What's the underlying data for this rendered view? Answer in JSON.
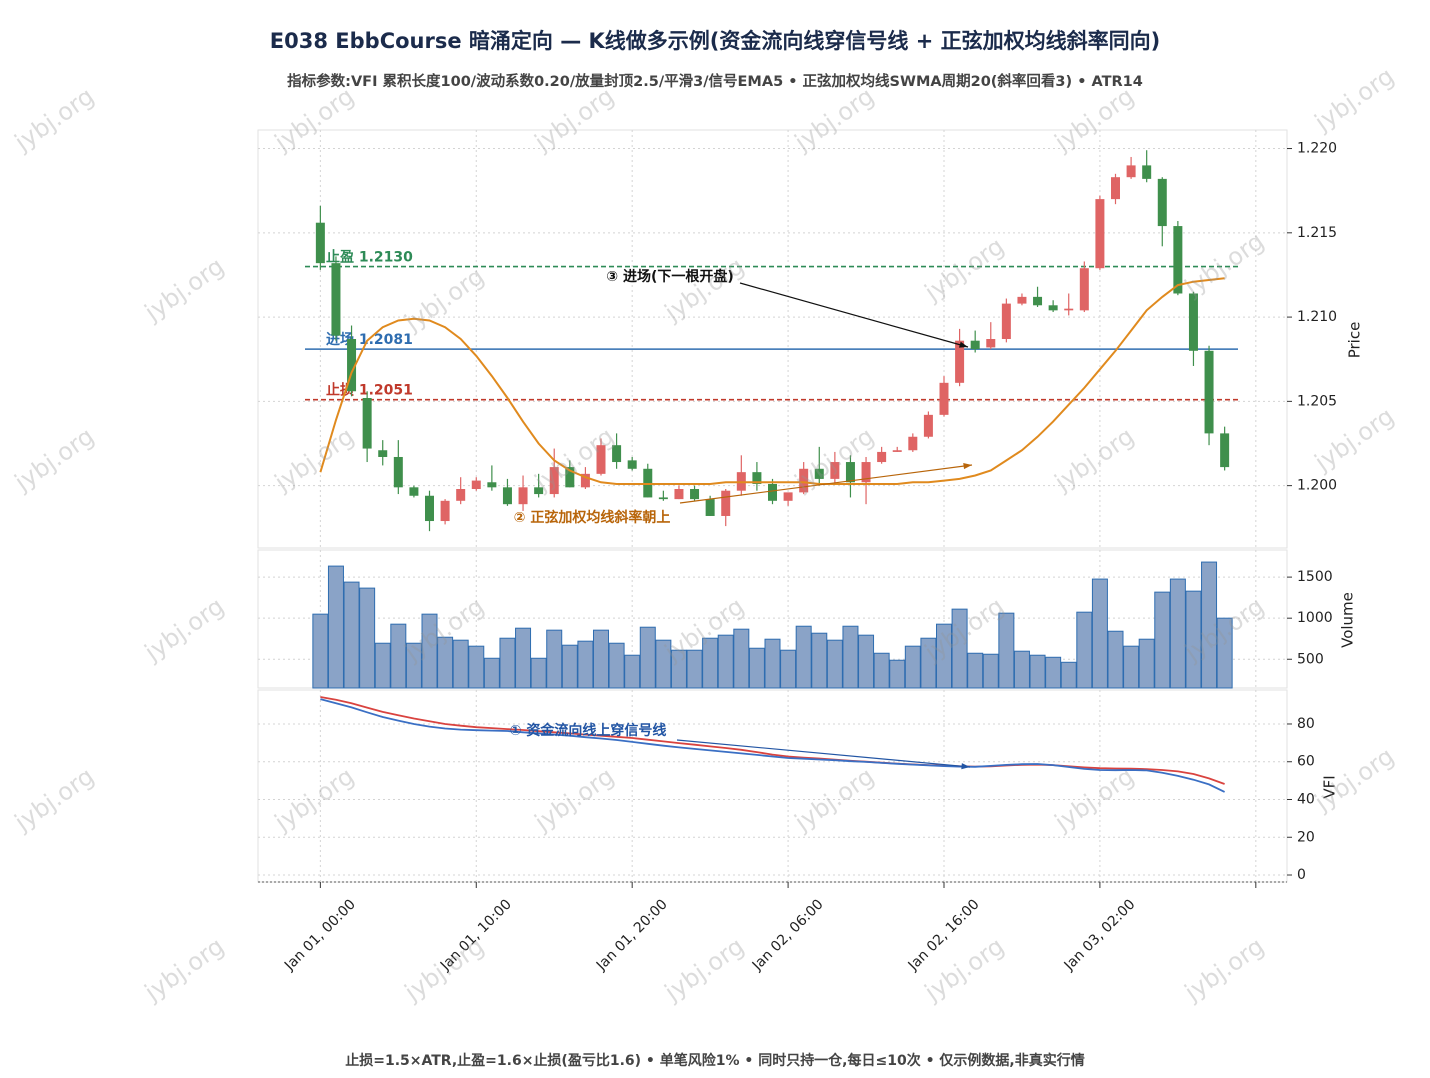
{
  "title": "E038 EbbCourse 暗涌定向 — K线做多示例(资金流向线穿信号线 + 正弦加权均线斜率同向)",
  "subtitle": "指标参数:VFI 累积长度100/波动系数0.20/放量封顶2.5/平滑3/信号EMA5 • 正弦加权均线SWMA周期20(斜率回看3) • ATR14",
  "footer": "止损=1.5×ATR,止盈=1.6×止损(盈亏比1.6) • 单笔风险1% • 同时只持一仓,每日≤10次 • 仅示例数据,非真实行情",
  "watermark": "jybj.org",
  "chart_data": [
    {
      "type": "candlestick",
      "ylabel": "Price",
      "x": [
        0,
        1,
        2,
        3,
        4,
        5,
        6,
        7,
        8,
        9,
        10,
        11,
        12,
        13,
        14,
        15,
        16,
        17,
        18,
        19,
        20,
        21,
        22,
        23,
        24,
        25,
        26,
        27,
        28,
        29,
        30,
        31,
        32,
        33,
        34,
        35,
        36,
        37,
        38,
        39,
        40,
        41,
        42,
        43,
        44,
        45,
        46,
        47,
        48,
        49,
        50,
        51,
        52,
        53,
        54,
        55,
        56,
        57,
        58
      ],
      "open": [
        1.2156,
        1.2132,
        1.2087,
        1.2052,
        1.2021,
        1.2017,
        1.1999,
        1.1994,
        1.1979,
        1.1991,
        1.1998,
        1.2002,
        1.1999,
        1.1989,
        1.1999,
        1.1995,
        1.2011,
        1.1999,
        1.2007,
        1.2024,
        1.2015,
        1.201,
        1.1993,
        1.1992,
        1.1998,
        1.1992,
        1.1982,
        1.1997,
        1.2008,
        1.2001,
        1.1991,
        1.1996,
        1.201,
        1.2004,
        1.2014,
        1.2002,
        1.2014,
        1.202,
        1.2021,
        1.2029,
        1.2042,
        1.2061,
        1.2086,
        1.2082,
        1.2087,
        1.2108,
        1.2112,
        1.2107,
        1.2104,
        1.2104,
        1.2129,
        1.217,
        1.2183,
        1.219,
        1.2182,
        1.2154,
        1.2114,
        1.208,
        1.2031
      ],
      "high": [
        1.2166,
        1.2136,
        1.2095,
        1.2056,
        1.2027,
        1.2027,
        1.2,
        1.1997,
        1.1992,
        1.2005,
        1.2005,
        1.2012,
        1.2004,
        1.2006,
        1.2007,
        1.2022,
        1.2015,
        1.2011,
        1.2028,
        1.2031,
        1.2017,
        1.2013,
        1.1997,
        1.2,
        1.2,
        1.1994,
        1.1998,
        1.2018,
        1.2014,
        1.2004,
        1.1995,
        1.2014,
        1.2023,
        1.202,
        1.2018,
        1.2017,
        1.2023,
        1.2023,
        1.2031,
        1.2044,
        1.2065,
        1.2093,
        1.2092,
        1.2097,
        1.2111,
        1.2114,
        1.2118,
        1.211,
        1.2114,
        1.2133,
        1.2172,
        1.2185,
        1.2195,
        1.2199,
        1.2183,
        1.2157,
        1.2115,
        1.2083,
        1.2035
      ],
      "low": [
        1.2128,
        1.2086,
        1.2053,
        1.2014,
        1.2012,
        1.1995,
        1.1993,
        1.1973,
        1.1977,
        1.1989,
        1.1997,
        1.1997,
        1.1988,
        1.1985,
        1.1993,
        1.1993,
        1.1999,
        1.1998,
        1.2006,
        1.201,
        1.2009,
        1.1993,
        1.1991,
        1.1992,
        1.1991,
        1.1982,
        1.1976,
        1.1994,
        1.1997,
        1.1989,
        1.1988,
        1.1995,
        1.2,
        1.2001,
        1.1993,
        1.1989,
        1.2013,
        1.202,
        1.202,
        1.2028,
        1.2041,
        1.2059,
        1.2079,
        1.2081,
        1.2085,
        1.2107,
        1.2106,
        1.2103,
        1.2101,
        1.2103,
        1.2128,
        1.2167,
        1.2182,
        1.218,
        1.2142,
        1.2113,
        1.2071,
        1.2024,
        1.2009
      ],
      "close": [
        1.2132,
        1.2089,
        1.2056,
        1.2022,
        1.2017,
        1.1999,
        1.1994,
        1.1979,
        1.1991,
        1.1998,
        1.2003,
        1.1999,
        1.1989,
        1.1999,
        1.1995,
        1.2011,
        1.1999,
        1.2007,
        1.2024,
        1.2014,
        1.201,
        1.1993,
        1.1992,
        1.1998,
        1.1992,
        1.1982,
        1.1997,
        1.2008,
        1.2001,
        1.1991,
        1.1996,
        1.201,
        1.2004,
        1.2014,
        1.2002,
        1.2014,
        1.202,
        1.2021,
        1.2029,
        1.2042,
        1.2061,
        1.2086,
        1.2081,
        1.2087,
        1.2108,
        1.2112,
        1.2107,
        1.2104,
        1.2105,
        1.2129,
        1.217,
        1.2183,
        1.219,
        1.2182,
        1.2154,
        1.2114,
        1.208,
        1.2031,
        1.2011
      ],
      "up_color": "#df6464",
      "down_color": "#3f8f4c",
      "overlay": {
        "color": "#e08a1e",
        "values": [
          1.2008,
          1.2039,
          1.2067,
          1.2086,
          1.2094,
          1.2098,
          1.2099,
          1.2098,
          1.2094,
          1.2087,
          1.2077,
          1.2065,
          1.2052,
          1.2038,
          1.2025,
          1.2015,
          1.2009,
          1.2005,
          1.2002,
          1.2001,
          1.2001,
          1.2001,
          1.2001,
          1.2001,
          1.2001,
          1.2001,
          1.2002,
          1.2002,
          1.2002,
          1.2002,
          1.2002,
          1.2002,
          1.2001,
          1.2001,
          1.2001,
          1.2001,
          1.2001,
          1.2001,
          1.2002,
          1.2002,
          1.2003,
          1.2004,
          1.2006,
          1.2009,
          1.2015,
          1.2021,
          1.2029,
          1.2038,
          1.2048,
          1.2058,
          1.2069,
          1.208,
          1.2092,
          1.2104,
          1.2112,
          1.2119,
          1.2121,
          1.2122,
          1.2123
        ]
      },
      "levels": [
        {
          "label": "止盈 1.2130",
          "value": 1.213,
          "color": "#2e8b57",
          "style": "dashed"
        },
        {
          "label": "进场 1.2081",
          "value": 1.2081,
          "color": "#2f6db0",
          "style": "solid"
        },
        {
          "label": "止损 1.2051",
          "value": 1.2051,
          "color": "#c0392b",
          "style": "dashed"
        }
      ],
      "annotations": [
        {
          "text": "③ 进场(下一根开盘)",
          "color": "#111111"
        },
        {
          "text": "② 正弦加权均线斜率朝上",
          "color": "#b8650a"
        }
      ],
      "ylim": [
        1.1963,
        1.2211
      ],
      "yticks": [
        {
          "value": 1.2,
          "label": "1.200"
        },
        1.205,
        {
          "value": 1.21,
          "label": "1.210"
        },
        1.215,
        {
          "value": 1.22,
          "label": "1.220"
        }
      ],
      "grid": true
    },
    {
      "type": "bar",
      "ylabel": "Volume",
      "values": [
        1049,
        1634,
        1439,
        1366,
        695,
        927,
        695,
        1049,
        768,
        732,
        659,
        512,
        756,
        878,
        512,
        854,
        671,
        720,
        854,
        695,
        549,
        890,
        732,
        610,
        610,
        756,
        793,
        866,
        634,
        744,
        610,
        902,
        817,
        732,
        902,
        793,
        573,
        488,
        659,
        756,
        927,
        1110,
        573,
        561,
        1061,
        598,
        549,
        524,
        463,
        1073,
        1476,
        841,
        659,
        744,
        1317,
        1476,
        1329,
        1683,
        1000
      ],
      "color": "#8aa3c7",
      "edgecolor": "#2f6db0",
      "ylim": [
        150,
        1830
      ],
      "yticks": [
        500,
        1000,
        1500
      ],
      "grid": true
    },
    {
      "type": "line",
      "ylabel": "VFI",
      "series": [
        {
          "color": "#d9433f",
          "values": [
            94.3,
            92.8,
            91.0,
            88.7,
            86.4,
            84.6,
            82.9,
            81.4,
            80.0,
            79.1,
            78.3,
            77.8,
            77.3,
            76.8,
            76.2,
            75.6,
            75.0,
            74.4,
            73.8,
            73.2,
            72.6,
            71.7,
            70.8,
            69.9,
            69.0,
            68.1,
            67.3,
            66.3,
            65.1,
            63.8,
            62.8,
            62.2,
            61.7,
            61.1,
            60.5,
            60.0,
            59.5,
            59.0,
            58.6,
            58.2,
            57.9,
            57.6,
            57.4,
            57.6,
            58.0,
            58.4,
            58.5,
            58.2,
            57.6,
            57.0,
            56.6,
            56.4,
            56.3,
            56.1,
            55.6,
            54.9,
            53.5,
            51.2,
            48.2
          ]
        },
        {
          "color": "#3a6fc4",
          "values": [
            93.2,
            91.0,
            88.8,
            86.2,
            83.7,
            81.8,
            80.0,
            78.6,
            77.6,
            77.0,
            76.7,
            76.5,
            76.3,
            75.6,
            75.0,
            74.4,
            73.8,
            73.0,
            72.3,
            71.5,
            70.5,
            69.5,
            68.5,
            67.6,
            66.8,
            66.0,
            65.2,
            64.4,
            63.6,
            62.8,
            62.0,
            61.6,
            61.2,
            60.8,
            60.3,
            59.9,
            59.4,
            58.9,
            58.5,
            58.1,
            57.7,
            57.4,
            57.3,
            57.8,
            58.3,
            58.7,
            58.8,
            58.2,
            57.2,
            56.2,
            55.6,
            55.5,
            55.6,
            55.4,
            54.2,
            52.5,
            50.5,
            48.0,
            44.0
          ]
        }
      ],
      "annotations": [
        {
          "text": "① 资金流向线上穿信号线",
          "color": "#2255a4"
        }
      ],
      "ylim": [
        -3.7,
        98
      ],
      "yticks": [
        0,
        20,
        40,
        60,
        80
      ],
      "grid": true,
      "xlim": [
        -4,
        62
      ],
      "xticks": [
        {
          "value": 0,
          "label": "Jan 01, 00:00"
        },
        {
          "value": 10,
          "label": "Jan 01, 10:00"
        },
        {
          "value": 20,
          "label": "Jan 01, 20:00"
        },
        {
          "value": 30,
          "label": "Jan 02, 06:00"
        },
        {
          "value": 40,
          "label": "Jan 02, 16:00"
        },
        {
          "value": 50,
          "label": "Jan 03, 02:00"
        },
        {
          "value": 60,
          "label": null
        }
      ]
    }
  ]
}
